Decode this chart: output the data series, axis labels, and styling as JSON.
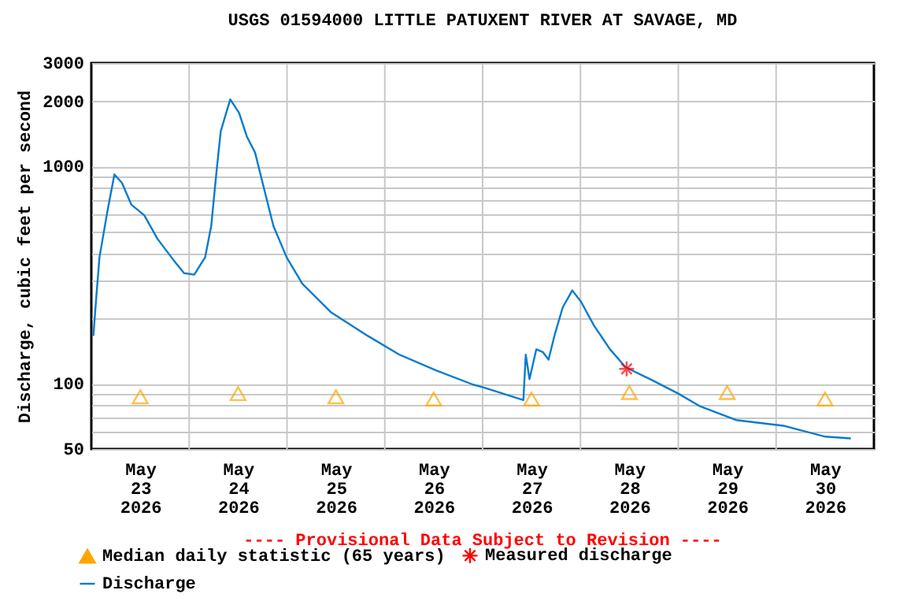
{
  "chart_data": {
    "type": "line",
    "title": "USGS 01594000 LITTLE PATUXENT RIVER AT SAVAGE, MD",
    "ylabel": "Discharge, cubic feet per second",
    "annotations": [
      "---- Provisional Data Subject to Revision ----"
    ],
    "log": "y",
    "grid": true,
    "legend": "bottom",
    "xlim": [
      "2026-05-23T00:00",
      "2026-05-31T00:00"
    ],
    "xticks": [
      {
        "value": "2026-05-23T12:00",
        "label": "May 23 2026"
      },
      {
        "value": "2026-05-24T00:00",
        "label": null
      },
      {
        "value": "2026-05-24T12:00",
        "label": "May 24 2026"
      },
      {
        "value": "2026-05-25T00:00",
        "label": null
      },
      {
        "value": "2026-05-25T12:00",
        "label": "May 25 2026"
      },
      {
        "value": "2026-05-26T00:00",
        "label": null
      },
      {
        "value": "2026-05-26T12:00",
        "label": "May 26 2026"
      },
      {
        "value": "2026-05-27T00:00",
        "label": null
      },
      {
        "value": "2026-05-27T12:00",
        "label": "May 27 2026"
      },
      {
        "value": "2026-05-28T00:00",
        "label": null
      },
      {
        "value": "2026-05-28T12:00",
        "label": "May 28 2026"
      },
      {
        "value": "2026-05-29T00:00",
        "label": null
      },
      {
        "value": "2026-05-29T12:00",
        "label": "May 29 2026"
      },
      {
        "value": "2026-05-30T00:00",
        "label": null
      },
      {
        "value": "2026-05-30T12:00",
        "label": "May 30 2026"
      }
    ],
    "ylim": [
      50,
      3000
    ],
    "yticks": [
      50,
      {
        "value": 60,
        "label": null
      },
      {
        "value": 70,
        "label": null
      },
      {
        "value": 80,
        "label": null
      },
      {
        "value": 90,
        "label": null
      },
      100,
      {
        "value": 200,
        "label": null
      },
      {
        "value": 300,
        "label": null
      },
      {
        "value": 400,
        "label": null
      },
      {
        "value": 500,
        "label": null
      },
      {
        "value": 600,
        "label": null
      },
      {
        "value": 700,
        "label": null
      },
      {
        "value": 800,
        "label": null
      },
      {
        "value": 900,
        "label": null
      },
      1000,
      2000,
      3000
    ],
    "series": [
      {
        "name": "Median daily statistic (65 years)",
        "type": "scatter",
        "marker": "triangle",
        "color": "#ffa500",
        "x": [
          "2026-05-23T12:00",
          "2026-05-24T12:00",
          "2026-05-25T12:00",
          "2026-05-26T12:00",
          "2026-05-27T12:00",
          "2026-05-28T12:00",
          "2026-05-29T12:00",
          "2026-05-30T12:00"
        ],
        "values": [
          87,
          90,
          87,
          85,
          85,
          91,
          91,
          85
        ]
      },
      {
        "name": "Measured discharge",
        "type": "scatter",
        "marker": "cross",
        "color": "#ff0000",
        "x": [
          "2026-05-28T11:20"
        ],
        "values": [
          117
        ]
      },
      {
        "name": "Discharge",
        "color": "#0a7bcc",
        "x": [
          "2026-05-23T00:30",
          "2026-05-23T01:10",
          "2026-05-23T02:00",
          "2026-05-23T04:00",
          "2026-05-23T05:40",
          "2026-05-23T07:30",
          "2026-05-23T09:50",
          "2026-05-23T13:00",
          "2026-05-23T16:15",
          "2026-05-23T20:10",
          "2026-05-23T22:45",
          "2026-05-24T01:15",
          "2026-05-24T03:55",
          "2026-05-24T05:25",
          "2026-05-24T06:40",
          "2026-05-24T07:45",
          "2026-05-24T10:05",
          "2026-05-24T12:15",
          "2026-05-24T14:10",
          "2026-05-24T16:10",
          "2026-05-24T18:05",
          "2026-05-24T20:40",
          "2026-05-24T23:55",
          "2026-05-25T03:45",
          "2026-05-25T10:50",
          "2026-05-25T19:50",
          "2026-05-26T03:35",
          "2026-05-26T12:40",
          "2026-05-26T21:40",
          "2026-05-27T00:15",
          "2026-05-27T10:00",
          "2026-05-27T10:35",
          "2026-05-27T11:30",
          "2026-05-27T13:10",
          "2026-05-27T14:45",
          "2026-05-27T16:10",
          "2026-05-27T17:45",
          "2026-05-27T19:40",
          "2026-05-27T22:00",
          "2026-05-28T00:10",
          "2026-05-28T03:20",
          "2026-05-28T07:15",
          "2026-05-28T11:05",
          "2026-05-28T17:30",
          "2026-05-29T00:00",
          "2026-05-29T05:10",
          "2026-05-29T14:10",
          "2026-05-30T01:50",
          "2026-05-30T12:05",
          "2026-05-30T18:20"
        ],
        "values": [
          166,
          244,
          382,
          631,
          920,
          842,
          667,
          596,
          464,
          371,
          323,
          318,
          382,
          533,
          931,
          1455,
          2040,
          1766,
          1374,
          1161,
          832,
          533,
          382,
          289,
          213,
          166,
          136,
          115,
          99,
          96,
          84,
          136,
          105,
          144,
          140,
          129,
          170,
          225,
          269,
          238,
          185,
          144,
          119,
          104,
          90,
          79,
          68,
          64,
          57,
          56
        ]
      }
    ]
  }
}
